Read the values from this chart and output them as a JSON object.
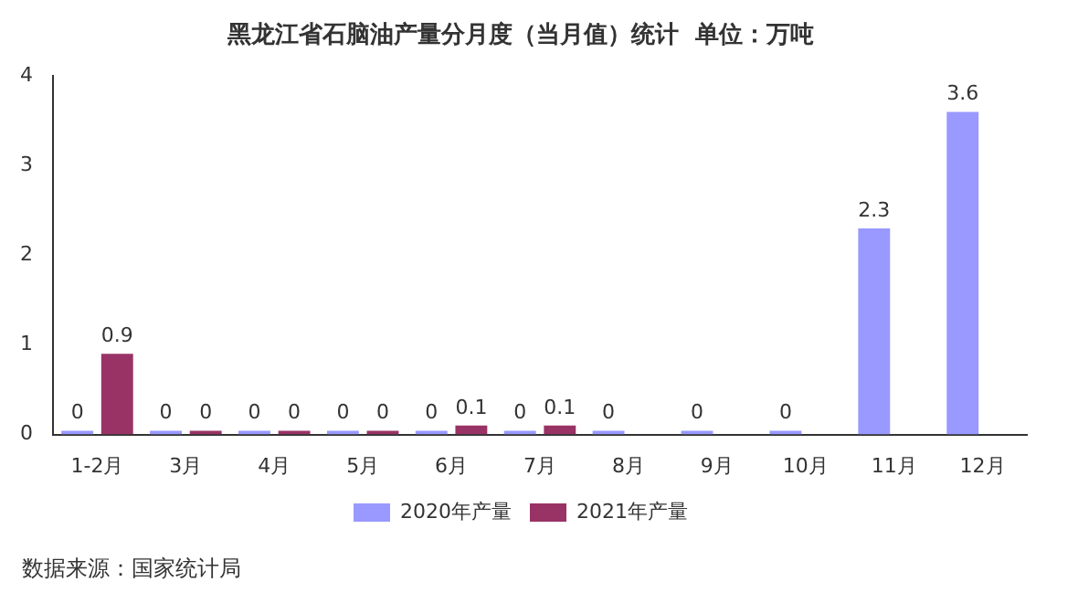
{
  "chart_data": {
    "type": "bar",
    "title": "黑龙江省石脑油产量分月度（当月值）统计  单位：万吨",
    "categories": [
      "1-2月",
      "3月",
      "4月",
      "5月",
      "6月",
      "7月",
      "8月",
      "9月",
      "10月",
      "11月",
      "12月"
    ],
    "series": [
      {
        "name": "2020年产量",
        "color": "#9999ff",
        "values": [
          0,
          0,
          0,
          0,
          0,
          0,
          0,
          0,
          0,
          2.3,
          3.6
        ]
      },
      {
        "name": "2021年产量",
        "color": "#993366",
        "values": [
          0.9,
          0,
          0,
          0,
          0.1,
          0.1,
          null,
          null,
          null,
          null,
          null
        ]
      }
    ],
    "ylim": [
      0,
      4
    ],
    "yticks": [
      0,
      1,
      2,
      3,
      4
    ],
    "grid": false,
    "legend": "bottom",
    "data_labels": true,
    "annotations": [
      "数据来源：国家统计局"
    ]
  }
}
